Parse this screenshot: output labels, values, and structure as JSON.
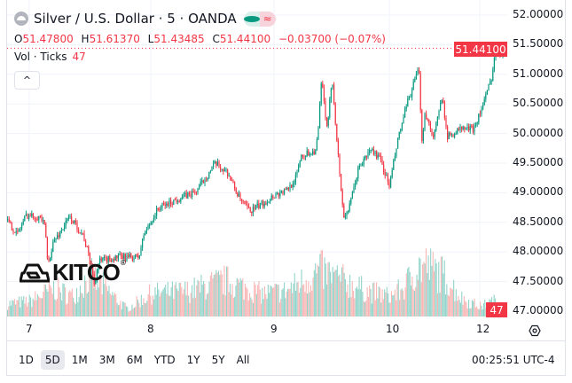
{
  "header": {
    "title": "Silver / U.S. Dollar · 5 · OANDA",
    "symbol_icon": "silver-coin-icon",
    "status_icons": [
      "market-open-dot-icon",
      "delayed-wave-icon"
    ],
    "wave_glyph": "≈"
  },
  "ohlc": {
    "o_label": "O",
    "o": "51.47800",
    "h_label": "H",
    "h": "51.61370",
    "l_label": "L",
    "l": "51.43485",
    "c_label": "C",
    "c": "51.44100",
    "change": "−0.03700 (−0.07%)"
  },
  "volume": {
    "label": "Vol · Ticks",
    "value": "47"
  },
  "collapse_glyph": "^",
  "logo": {
    "text": "KITCO",
    "mark": "®"
  },
  "last_price_tag": "51.44100",
  "volume_tag": "47",
  "bottom": {
    "ranges": [
      "1D",
      "5D",
      "1M",
      "3M",
      "6M",
      "YTD",
      "1Y",
      "5Y",
      "All"
    ],
    "selected": "5D",
    "clock": "00:25:51 UTC-4"
  },
  "colors": {
    "up": "#089981",
    "down": "#f23645",
    "vol_up": "#7fccc0",
    "vol_down": "#f7a9a7",
    "grid": "#f0f3fa"
  },
  "chart_data": {
    "type": "candlestick",
    "title": "Silver / U.S. Dollar · 5 · OANDA",
    "interval": "5",
    "x_ticks": [
      "7",
      "8",
      "9",
      "10",
      "12"
    ],
    "y_ticks": [
      "52.00000",
      "51.50000",
      "51.00000",
      "50.50000",
      "50.00000",
      "49.50000",
      "49.00000",
      "48.50000",
      "48.00000",
      "47.50000",
      "47.00000"
    ],
    "ylim": [
      46.98,
      52.25
    ],
    "grid": true,
    "last_close": 51.441,
    "price_path": [
      [
        6.82,
        48.54
      ],
      [
        6.91,
        48.3
      ],
      [
        6.98,
        48.62
      ],
      [
        7.1,
        48.59
      ],
      [
        7.14,
        48.39
      ],
      [
        7.16,
        47.76
      ],
      [
        7.2,
        48.14
      ],
      [
        7.34,
        48.59
      ],
      [
        7.45,
        48.29
      ],
      [
        7.52,
        47.76
      ],
      [
        7.54,
        47.46
      ],
      [
        7.58,
        47.84
      ],
      [
        7.74,
        47.91
      ],
      [
        7.91,
        47.91
      ],
      [
        7.95,
        48.29
      ],
      [
        8.07,
        48.74
      ],
      [
        8.22,
        48.89
      ],
      [
        8.37,
        49.01
      ],
      [
        8.53,
        49.49
      ],
      [
        8.63,
        49.34
      ],
      [
        8.73,
        48.89
      ],
      [
        8.81,
        48.69
      ],
      [
        8.91,
        48.81
      ],
      [
        9.01,
        48.96
      ],
      [
        9.12,
        49.04
      ],
      [
        9.2,
        49.26
      ],
      [
        9.24,
        49.63
      ],
      [
        9.37,
        49.71
      ],
      [
        9.39,
        50.01
      ],
      [
        9.42,
        50.91
      ],
      [
        9.47,
        50.01
      ],
      [
        9.51,
        50.98
      ],
      [
        9.56,
        49.71
      ],
      [
        9.61,
        48.59
      ],
      [
        9.66,
        48.74
      ],
      [
        9.74,
        49.41
      ],
      [
        9.85,
        49.74
      ],
      [
        9.93,
        49.56
      ],
      [
        10.02,
        49.11
      ],
      [
        10.22,
        49.93
      ],
      [
        10.41,
        50.49
      ],
      [
        10.67,
        51.09
      ],
      [
        10.75,
        49.78
      ],
      [
        10.8,
        50.38
      ],
      [
        11.0,
        49.93
      ],
      [
        11.2,
        50.68
      ],
      [
        11.29,
        49.93
      ],
      [
        11.59,
        50.08
      ],
      [
        11.88,
        50.08
      ],
      [
        12.08,
        50.46
      ],
      [
        12.27,
        50.91
      ],
      [
        12.39,
        51.51
      ],
      [
        12.47,
        51.36
      ],
      [
        12.57,
        51.44
      ]
    ],
    "volume_relative": [
      [
        6.82,
        0.25
      ],
      [
        7.0,
        0.3
      ],
      [
        7.2,
        0.55
      ],
      [
        7.35,
        0.4
      ],
      [
        7.5,
        0.8
      ],
      [
        7.6,
        0.6
      ],
      [
        7.8,
        0.15
      ],
      [
        8.0,
        0.45
      ],
      [
        8.3,
        0.5
      ],
      [
        8.6,
        0.7
      ],
      [
        8.9,
        0.45
      ],
      [
        9.1,
        0.5
      ],
      [
        9.4,
        0.9
      ],
      [
        9.6,
        0.7
      ],
      [
        9.8,
        0.5
      ],
      [
        10.0,
        0.4
      ],
      [
        10.3,
        0.55
      ],
      [
        10.6,
        0.95
      ],
      [
        10.8,
        1.0
      ],
      [
        11.2,
        0.8
      ],
      [
        11.6,
        0.35
      ],
      [
        12.0,
        0.2
      ],
      [
        12.3,
        0.3
      ],
      [
        12.57,
        0.2
      ]
    ]
  }
}
